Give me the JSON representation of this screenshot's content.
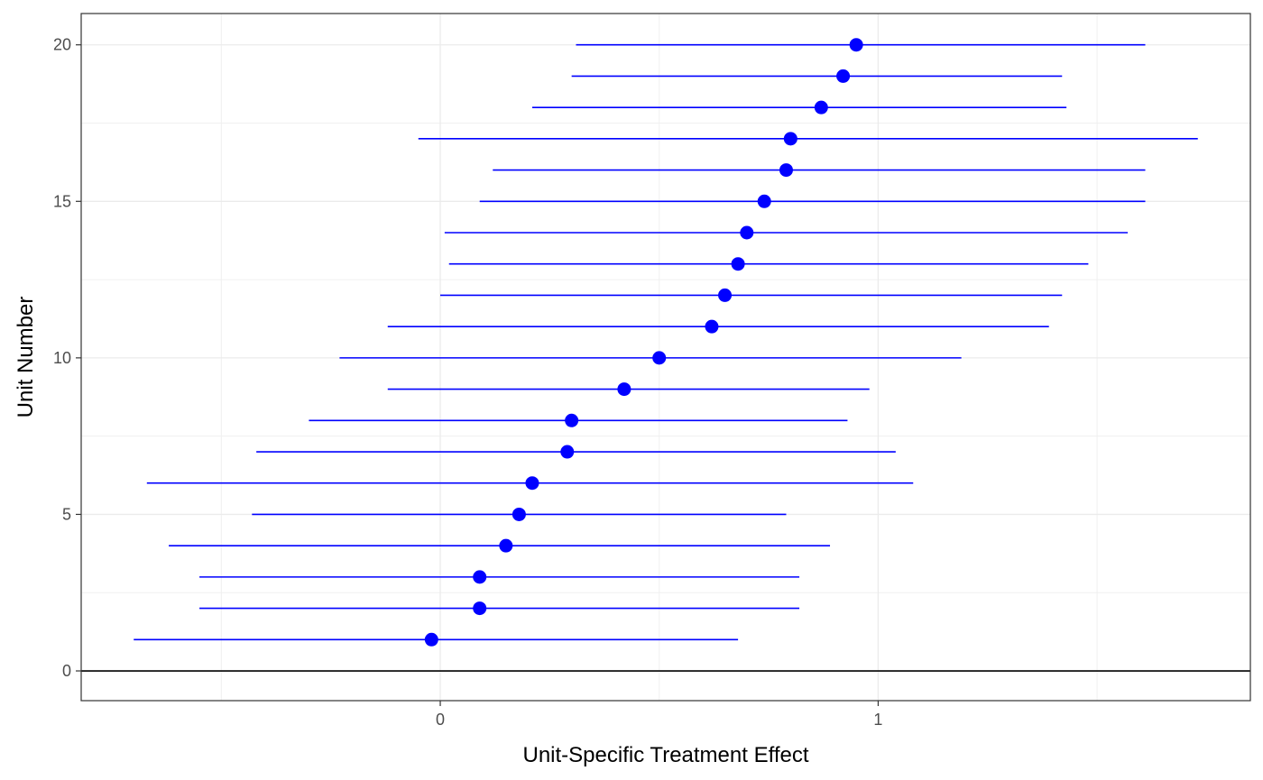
{
  "chart_data": {
    "type": "scatter",
    "title": "",
    "xlabel": "Unit-Specific Treatment Effect",
    "ylabel": "Unit Number",
    "xlim": [
      -0.82,
      1.85
    ],
    "ylim": [
      -0.95,
      21
    ],
    "x_ticks": [
      0,
      1
    ],
    "x_tick_labels": [
      "0",
      "1"
    ],
    "y_ticks": [
      0,
      5,
      10,
      15,
      20
    ],
    "y_tick_labels": [
      "0",
      "5",
      "10",
      "15",
      "20"
    ],
    "grid": true,
    "reference_hline": 0,
    "series": [
      {
        "color": "#0000ff",
        "points": [
          {
            "unit": 1,
            "estimate": -0.02,
            "lower": -0.7,
            "upper": 0.68
          },
          {
            "unit": 2,
            "estimate": 0.09,
            "lower": -0.55,
            "upper": 0.82
          },
          {
            "unit": 3,
            "estimate": 0.09,
            "lower": -0.55,
            "upper": 0.82
          },
          {
            "unit": 4,
            "estimate": 0.15,
            "lower": -0.62,
            "upper": 0.89
          },
          {
            "unit": 5,
            "estimate": 0.18,
            "lower": -0.43,
            "upper": 0.79
          },
          {
            "unit": 6,
            "estimate": 0.21,
            "lower": -0.67,
            "upper": 1.08
          },
          {
            "unit": 7,
            "estimate": 0.29,
            "lower": -0.42,
            "upper": 1.04
          },
          {
            "unit": 8,
            "estimate": 0.3,
            "lower": -0.3,
            "upper": 0.93
          },
          {
            "unit": 9,
            "estimate": 0.42,
            "lower": -0.12,
            "upper": 0.98
          },
          {
            "unit": 10,
            "estimate": 0.5,
            "lower": -0.23,
            "upper": 1.19
          },
          {
            "unit": 11,
            "estimate": 0.62,
            "lower": -0.12,
            "upper": 1.39
          },
          {
            "unit": 12,
            "estimate": 0.65,
            "lower": 0.0,
            "upper": 1.42
          },
          {
            "unit": 13,
            "estimate": 0.68,
            "lower": 0.02,
            "upper": 1.48
          },
          {
            "unit": 14,
            "estimate": 0.7,
            "lower": 0.01,
            "upper": 1.57
          },
          {
            "unit": 15,
            "estimate": 0.74,
            "lower": 0.09,
            "upper": 1.61
          },
          {
            "unit": 16,
            "estimate": 0.79,
            "lower": 0.12,
            "upper": 1.61
          },
          {
            "unit": 17,
            "estimate": 0.8,
            "lower": -0.05,
            "upper": 1.73
          },
          {
            "unit": 18,
            "estimate": 0.87,
            "lower": 0.21,
            "upper": 1.43
          },
          {
            "unit": 19,
            "estimate": 0.92,
            "lower": 0.3,
            "upper": 1.42
          },
          {
            "unit": 20,
            "estimate": 0.95,
            "lower": 0.31,
            "upper": 1.61
          }
        ]
      }
    ]
  }
}
